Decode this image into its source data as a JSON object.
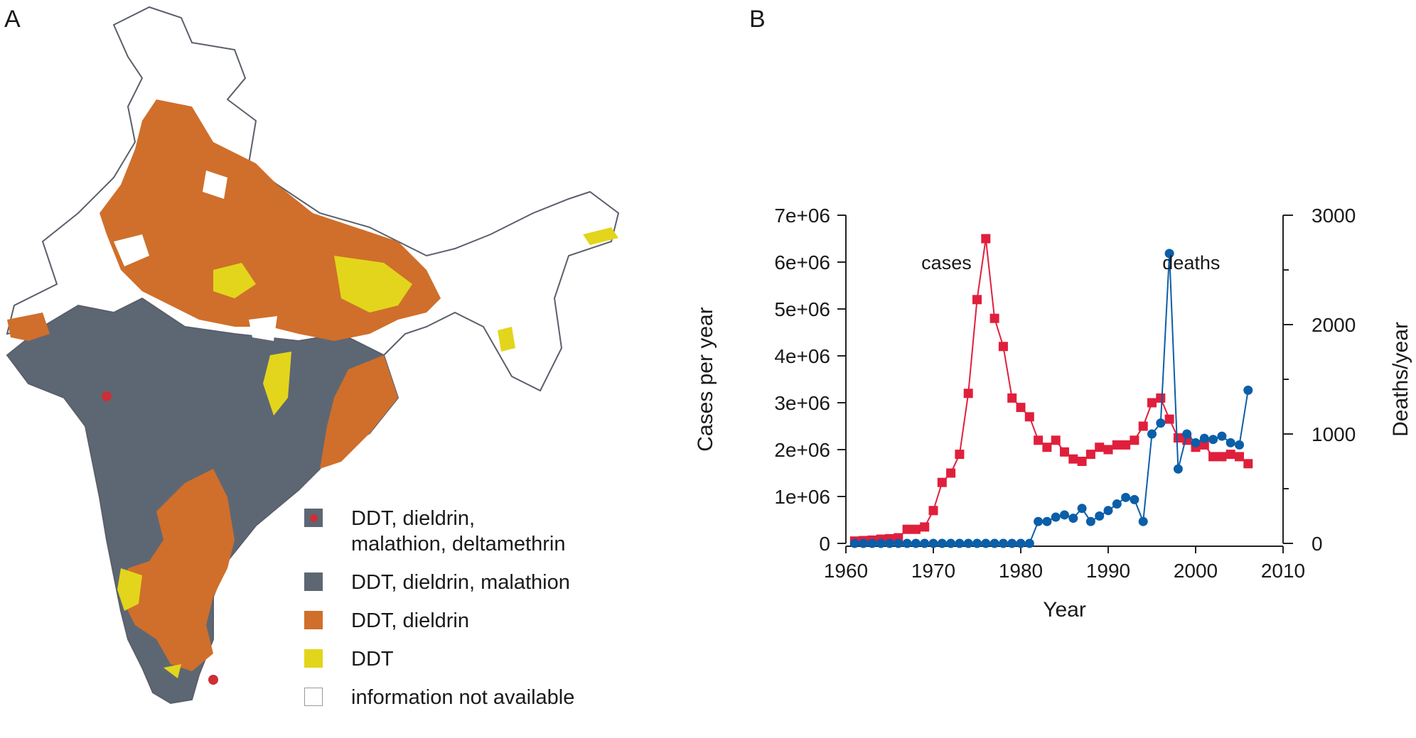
{
  "panels": {
    "a": "A",
    "b": "B"
  },
  "map_legend": [
    {
      "label": "DDT, dieldrin,\nmalathion, deltamethrin",
      "color": "#5d6773",
      "marker": true
    },
    {
      "label": "DDT, dieldrin, malathion",
      "color": "#5d6773",
      "marker": false
    },
    {
      "label": "DDT, dieldrin",
      "color": "#cf6f2b",
      "marker": false
    },
    {
      "label": "DDT",
      "color": "#e3d51c",
      "marker": false
    },
    {
      "label": "information not available",
      "color": "#ffffff",
      "marker": false
    }
  ],
  "colors": {
    "marker": "#cc2f35",
    "outline": "#5a5f6a",
    "cases": "#e01f3c",
    "deaths": "#0b5ea8"
  },
  "chart_data": {
    "type": "line",
    "xlabel": "Year",
    "ylabel": "Cases per year",
    "y2label": "Deaths/year",
    "xlim": [
      1960,
      2010
    ],
    "ylim": [
      0,
      7000000
    ],
    "y2lim": [
      0,
      3000
    ],
    "xticks": [
      "1960",
      "1970",
      "1980",
      "1990",
      "2000",
      "2010"
    ],
    "yticks": [
      "0",
      "1e+06",
      "2e+06",
      "3e+06",
      "4e+06",
      "5e+06",
      "6e+06",
      "7e+06"
    ],
    "y2ticks": [
      "0",
      "1000",
      "2000",
      "3000"
    ],
    "x": [
      1961,
      1962,
      1963,
      1964,
      1965,
      1966,
      1967,
      1968,
      1969,
      1970,
      1971,
      1972,
      1973,
      1974,
      1975,
      1976,
      1977,
      1978,
      1979,
      1980,
      1981,
      1982,
      1983,
      1984,
      1985,
      1986,
      1987,
      1988,
      1989,
      1990,
      1991,
      1992,
      1993,
      1994,
      1995,
      1996,
      1997,
      1998,
      1999,
      2000,
      2001,
      2002,
      2003,
      2004,
      2005,
      2006
    ],
    "series": [
      {
        "name": "cases",
        "axis": "left",
        "marker": "square",
        "values": [
          50000,
          60000,
          70000,
          90000,
          100000,
          120000,
          300000,
          300000,
          350000,
          700000,
          1300000,
          1500000,
          1900000,
          3200000,
          5200000,
          6500000,
          4800000,
          4200000,
          3100000,
          2900000,
          2700000,
          2200000,
          2050000,
          2200000,
          1950000,
          1800000,
          1750000,
          1900000,
          2050000,
          2000000,
          2100000,
          2100000,
          2200000,
          2500000,
          3000000,
          3100000,
          2650000,
          2250000,
          2200000,
          2050000,
          2100000,
          1850000,
          1850000,
          1900000,
          1850000,
          1700000
        ]
      },
      {
        "name": "deaths",
        "axis": "right",
        "marker": "circle",
        "values": [
          0,
          0,
          0,
          0,
          0,
          0,
          0,
          0,
          0,
          0,
          0,
          0,
          0,
          0,
          0,
          0,
          0,
          0,
          0,
          0,
          0,
          200,
          200,
          240,
          260,
          230,
          320,
          200,
          250,
          300,
          360,
          420,
          400,
          200,
          1000,
          1100,
          2650,
          680,
          1000,
          920,
          960,
          950,
          980,
          920,
          900,
          1400
        ]
      }
    ],
    "annotations": [
      {
        "text": "cases",
        "x": 1971.5,
        "y": 6000000
      },
      {
        "text": "deaths",
        "x": 1999.5,
        "y": 6000000
      }
    ]
  }
}
